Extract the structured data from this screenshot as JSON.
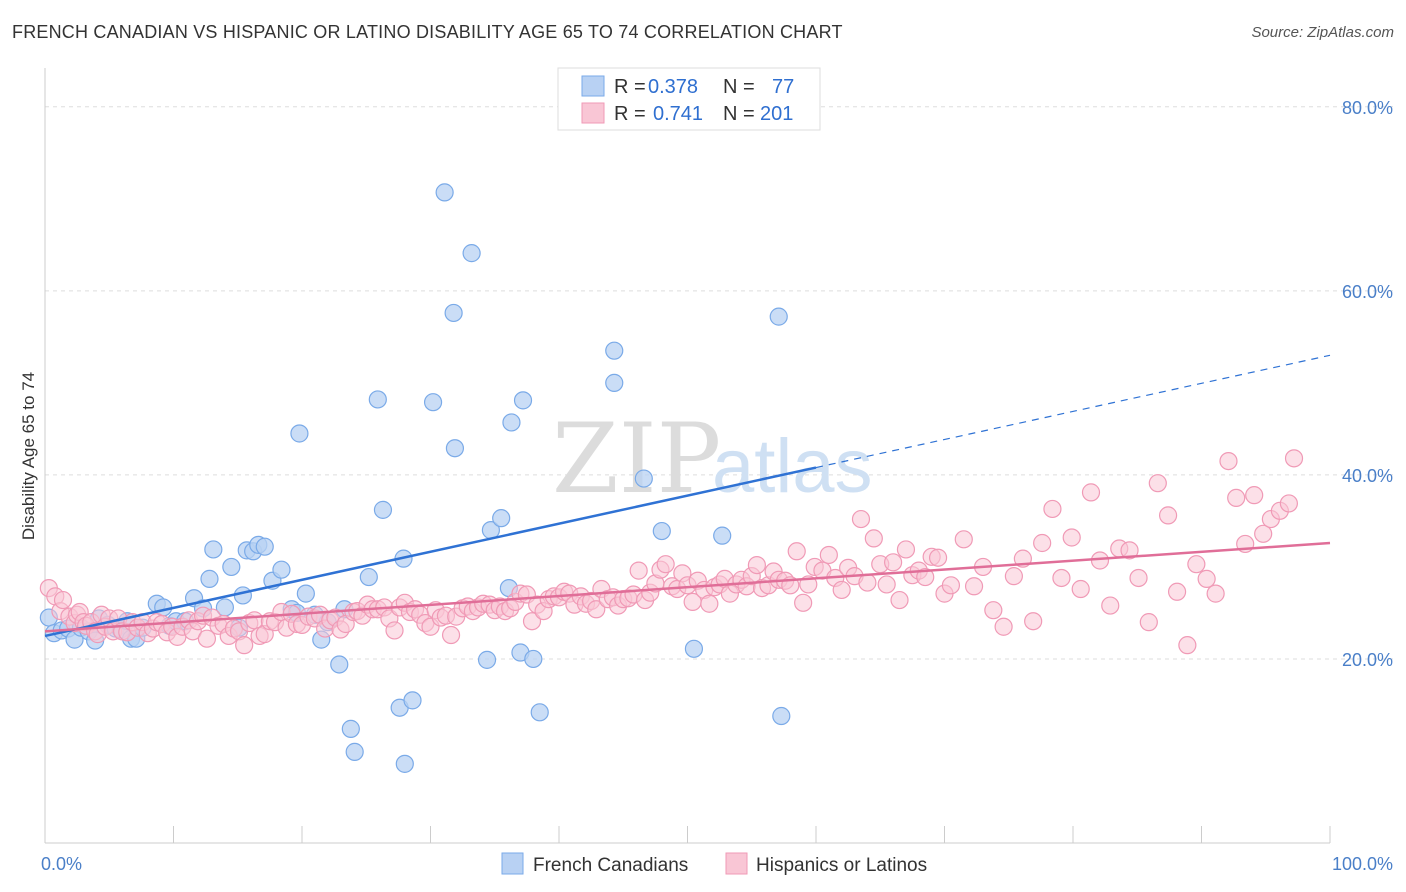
{
  "chart_data": {
    "type": "scatter",
    "title": "FRENCH CANADIAN VS HISPANIC OR LATINO DISABILITY AGE 65 TO 74 CORRELATION CHART",
    "source": "Source: ZipAtlas.com",
    "xlabel": "",
    "ylabel": "Disability Age 65 to 74",
    "xlim": [
      0,
      100
    ],
    "ylim": [
      0,
      84
    ],
    "x_tick_labels": [
      {
        "v": 0,
        "label": "0.0%"
      },
      {
        "v": 100,
        "label": "100.0%"
      }
    ],
    "y_tick_labels": [
      {
        "v": 20,
        "label": "20.0%"
      },
      {
        "v": 40,
        "label": "40.0%"
      },
      {
        "v": 60,
        "label": "60.0%"
      },
      {
        "v": 80,
        "label": "80.0%"
      }
    ],
    "watermark": {
      "zip": "ZIP",
      "atlas": "atlas"
    },
    "legend": [
      {
        "r_label": "R =",
        "r_value": "0.378",
        "n_label": "N =",
        "n_value": "77"
      },
      {
        "r_label": "R =",
        "r_value": "0.741",
        "n_label": "N =",
        "n_value": "201"
      }
    ],
    "series": [
      {
        "name": "French Canadians",
        "color": "#7aaae8",
        "fill": "#b8d1f3",
        "trend": {
          "x0": 0,
          "y0": 22.5,
          "x1": 60,
          "y1": 40.8,
          "x_ext": 100,
          "y_ext": 53.0
        },
        "points": [
          [
            0.3,
            24.5
          ],
          [
            0.7,
            22.8
          ],
          [
            1.3,
            23.1
          ],
          [
            1.8,
            23.3
          ],
          [
            2.3,
            22.1
          ],
          [
            2.8,
            23.4
          ],
          [
            3.4,
            23.0
          ],
          [
            3.9,
            22.0
          ],
          [
            4.2,
            24.4
          ],
          [
            4.9,
            23.7
          ],
          [
            5.5,
            23.3
          ],
          [
            5.9,
            23.2
          ],
          [
            6.4,
            24.1
          ],
          [
            6.7,
            22.2
          ],
          [
            7.1,
            22.2
          ],
          [
            7.6,
            23.4
          ],
          [
            8.7,
            26.0
          ],
          [
            9.2,
            25.6
          ],
          [
            9.7,
            23.6
          ],
          [
            10.2,
            24.1
          ],
          [
            10.9,
            24.1
          ],
          [
            11.6,
            26.6
          ],
          [
            12.3,
            25.5
          ],
          [
            12.8,
            28.7
          ],
          [
            13.1,
            31.9
          ],
          [
            14.0,
            25.6
          ],
          [
            14.5,
            30.0
          ],
          [
            15.1,
            23.4
          ],
          [
            15.4,
            26.9
          ],
          [
            15.7,
            31.8
          ],
          [
            16.2,
            31.7
          ],
          [
            16.6,
            32.4
          ],
          [
            17.1,
            32.2
          ],
          [
            17.7,
            28.5
          ],
          [
            18.4,
            29.7
          ],
          [
            19.2,
            25.4
          ],
          [
            19.6,
            25.0
          ],
          [
            19.8,
            44.5
          ],
          [
            20.3,
            27.1
          ],
          [
            21.0,
            24.8
          ],
          [
            21.5,
            22.1
          ],
          [
            22.0,
            24.0
          ],
          [
            22.9,
            19.4
          ],
          [
            23.3,
            25.4
          ],
          [
            23.8,
            12.4
          ],
          [
            24.1,
            9.9
          ],
          [
            25.2,
            28.9
          ],
          [
            25.9,
            48.2
          ],
          [
            26.3,
            36.2
          ],
          [
            27.6,
            14.7
          ],
          [
            27.9,
            30.9
          ],
          [
            28.0,
            8.6
          ],
          [
            28.6,
            15.5
          ],
          [
            30.2,
            47.9
          ],
          [
            31.1,
            70.7
          ],
          [
            31.8,
            57.6
          ],
          [
            31.9,
            42.9
          ],
          [
            33.2,
            64.1
          ],
          [
            34.4,
            19.9
          ],
          [
            34.7,
            34.0
          ],
          [
            35.5,
            35.3
          ],
          [
            36.1,
            27.7
          ],
          [
            36.3,
            45.7
          ],
          [
            37.0,
            20.7
          ],
          [
            37.2,
            48.1
          ],
          [
            38.0,
            20.0
          ],
          [
            38.5,
            14.2
          ],
          [
            44.3,
            53.5
          ],
          [
            44.3,
            50.0
          ],
          [
            46.6,
            39.6
          ],
          [
            48.0,
            33.9
          ],
          [
            50.5,
            21.1
          ],
          [
            52.7,
            33.4
          ],
          [
            57.1,
            57.2
          ],
          [
            57.3,
            13.8
          ]
        ]
      },
      {
        "name": "Hispanics or Latinos",
        "color": "#f09ab6",
        "fill": "#f9c6d5",
        "trend": {
          "x0": 0,
          "y0": 23.0,
          "x1": 100,
          "y1": 32.6
        },
        "points": [
          [
            0.3,
            27.7
          ],
          [
            0.8,
            26.8
          ],
          [
            1.2,
            25.2
          ],
          [
            1.4,
            26.4
          ],
          [
            1.9,
            24.6
          ],
          [
            2.3,
            23.9
          ],
          [
            2.5,
            24.8
          ],
          [
            2.7,
            25.1
          ],
          [
            3.0,
            24.0
          ],
          [
            3.2,
            23.6
          ],
          [
            3.6,
            24.0
          ],
          [
            3.9,
            23.0
          ],
          [
            4.1,
            22.7
          ],
          [
            4.4,
            24.8
          ],
          [
            4.7,
            23.5
          ],
          [
            5.0,
            24.4
          ],
          [
            5.3,
            23.0
          ],
          [
            5.7,
            24.4
          ],
          [
            6.0,
            23.0
          ],
          [
            6.4,
            22.9
          ],
          [
            6.8,
            24.0
          ],
          [
            7.2,
            23.4
          ],
          [
            7.6,
            24.0
          ],
          [
            8.0,
            22.8
          ],
          [
            8.4,
            23.3
          ],
          [
            8.7,
            24.0
          ],
          [
            9.1,
            23.8
          ],
          [
            9.5,
            22.9
          ],
          [
            9.9,
            23.5
          ],
          [
            10.3,
            22.4
          ],
          [
            10.7,
            23.5
          ],
          [
            11.2,
            24.2
          ],
          [
            11.5,
            23.0
          ],
          [
            11.9,
            24.1
          ],
          [
            12.3,
            24.7
          ],
          [
            12.6,
            22.2
          ],
          [
            13.0,
            24.5
          ],
          [
            13.5,
            23.6
          ],
          [
            13.9,
            23.8
          ],
          [
            14.3,
            22.5
          ],
          [
            14.7,
            23.3
          ],
          [
            15.1,
            23.0
          ],
          [
            15.5,
            21.5
          ],
          [
            15.9,
            23.9
          ],
          [
            16.3,
            24.2
          ],
          [
            16.7,
            22.5
          ],
          [
            17.1,
            22.7
          ],
          [
            17.5,
            24.1
          ],
          [
            17.9,
            24.0
          ],
          [
            18.4,
            25.1
          ],
          [
            18.8,
            23.4
          ],
          [
            19.2,
            24.9
          ],
          [
            19.6,
            23.8
          ],
          [
            20.0,
            23.7
          ],
          [
            20.5,
            24.6
          ],
          [
            21.0,
            24.4
          ],
          [
            21.4,
            24.8
          ],
          [
            21.8,
            23.3
          ],
          [
            22.2,
            24.2
          ],
          [
            22.6,
            24.5
          ],
          [
            23.0,
            23.2
          ],
          [
            23.4,
            23.8
          ],
          [
            24.0,
            25.1
          ],
          [
            24.3,
            25.2
          ],
          [
            24.7,
            24.7
          ],
          [
            25.1,
            25.9
          ],
          [
            25.5,
            25.4
          ],
          [
            25.9,
            25.4
          ],
          [
            26.4,
            25.6
          ],
          [
            26.8,
            24.4
          ],
          [
            27.2,
            23.1
          ],
          [
            27.6,
            25.6
          ],
          [
            28.0,
            26.1
          ],
          [
            28.4,
            25.1
          ],
          [
            28.8,
            25.4
          ],
          [
            29.2,
            24.8
          ],
          [
            29.6,
            23.9
          ],
          [
            30.0,
            23.5
          ],
          [
            30.4,
            25.3
          ],
          [
            30.8,
            24.5
          ],
          [
            31.2,
            24.7
          ],
          [
            31.6,
            22.6
          ],
          [
            32.0,
            24.6
          ],
          [
            32.5,
            25.5
          ],
          [
            32.9,
            25.7
          ],
          [
            33.3,
            25.2
          ],
          [
            33.7,
            25.6
          ],
          [
            34.1,
            26.0
          ],
          [
            34.6,
            25.9
          ],
          [
            35.0,
            25.3
          ],
          [
            35.4,
            25.7
          ],
          [
            35.8,
            25.2
          ],
          [
            36.2,
            25.5
          ],
          [
            36.6,
            26.2
          ],
          [
            37.0,
            27.1
          ],
          [
            37.5,
            27.0
          ],
          [
            37.9,
            24.1
          ],
          [
            38.3,
            25.9
          ],
          [
            38.8,
            25.2
          ],
          [
            39.2,
            26.5
          ],
          [
            39.6,
            26.8
          ],
          [
            40.0,
            26.7
          ],
          [
            40.4,
            27.3
          ],
          [
            40.8,
            27.1
          ],
          [
            41.2,
            25.9
          ],
          [
            41.7,
            26.8
          ],
          [
            42.1,
            26.0
          ],
          [
            42.5,
            26.3
          ],
          [
            42.9,
            25.4
          ],
          [
            43.3,
            27.6
          ],
          [
            43.8,
            26.5
          ],
          [
            44.2,
            26.7
          ],
          [
            44.6,
            25.8
          ],
          [
            45.0,
            26.5
          ],
          [
            45.4,
            26.6
          ],
          [
            45.8,
            27.0
          ],
          [
            46.2,
            29.6
          ],
          [
            46.7,
            26.4
          ],
          [
            47.1,
            27.2
          ],
          [
            47.5,
            28.2
          ],
          [
            47.9,
            29.7
          ],
          [
            48.3,
            30.3
          ],
          [
            48.8,
            27.9
          ],
          [
            49.2,
            27.6
          ],
          [
            49.6,
            29.3
          ],
          [
            50.0,
            28.0
          ],
          [
            50.4,
            26.2
          ],
          [
            50.8,
            28.5
          ],
          [
            51.3,
            27.5
          ],
          [
            51.7,
            26.0
          ],
          [
            52.1,
            27.8
          ],
          [
            52.5,
            28.1
          ],
          [
            52.9,
            28.7
          ],
          [
            53.3,
            27.1
          ],
          [
            53.8,
            28.1
          ],
          [
            54.2,
            28.6
          ],
          [
            54.6,
            27.9
          ],
          [
            55.0,
            29.0
          ],
          [
            55.4,
            30.2
          ],
          [
            55.8,
            27.7
          ],
          [
            56.3,
            28.0
          ],
          [
            56.7,
            29.5
          ],
          [
            57.1,
            28.6
          ],
          [
            57.6,
            28.5
          ],
          [
            58.0,
            28.0
          ],
          [
            58.5,
            31.7
          ],
          [
            59.0,
            26.1
          ],
          [
            59.4,
            28.1
          ],
          [
            59.9,
            30.0
          ],
          [
            60.5,
            29.6
          ],
          [
            61.0,
            31.3
          ],
          [
            61.5,
            28.8
          ],
          [
            62.0,
            27.5
          ],
          [
            62.5,
            29.9
          ],
          [
            63.0,
            29.0
          ],
          [
            63.5,
            35.2
          ],
          [
            64.0,
            28.3
          ],
          [
            64.5,
            33.1
          ],
          [
            65.0,
            30.3
          ],
          [
            65.5,
            28.1
          ],
          [
            66.0,
            30.5
          ],
          [
            66.5,
            26.4
          ],
          [
            67.0,
            31.9
          ],
          [
            67.5,
            29.1
          ],
          [
            68.0,
            29.6
          ],
          [
            68.5,
            28.9
          ],
          [
            69.0,
            31.1
          ],
          [
            69.5,
            31.0
          ],
          [
            70.0,
            27.1
          ],
          [
            70.5,
            28.0
          ],
          [
            71.5,
            33.0
          ],
          [
            72.3,
            27.9
          ],
          [
            73.0,
            30.0
          ],
          [
            73.8,
            25.3
          ],
          [
            74.6,
            23.5
          ],
          [
            75.4,
            29.0
          ],
          [
            76.1,
            30.9
          ],
          [
            76.9,
            24.1
          ],
          [
            77.6,
            32.6
          ],
          [
            78.4,
            36.3
          ],
          [
            79.1,
            28.8
          ],
          [
            79.9,
            33.2
          ],
          [
            80.6,
            27.6
          ],
          [
            81.4,
            38.1
          ],
          [
            82.1,
            30.7
          ],
          [
            82.9,
            25.8
          ],
          [
            83.6,
            32.0
          ],
          [
            84.4,
            31.8
          ],
          [
            85.1,
            28.8
          ],
          [
            85.9,
            24.0
          ],
          [
            86.6,
            39.1
          ],
          [
            87.4,
            35.6
          ],
          [
            88.1,
            27.3
          ],
          [
            88.9,
            21.5
          ],
          [
            89.6,
            30.3
          ],
          [
            90.4,
            28.7
          ],
          [
            91.1,
            27.1
          ],
          [
            92.1,
            41.5
          ],
          [
            92.7,
            37.5
          ],
          [
            93.4,
            32.5
          ],
          [
            94.1,
            37.8
          ],
          [
            94.8,
            33.6
          ],
          [
            95.4,
            35.2
          ],
          [
            96.1,
            36.1
          ],
          [
            96.8,
            36.9
          ],
          [
            97.2,
            41.8
          ]
        ]
      }
    ]
  }
}
